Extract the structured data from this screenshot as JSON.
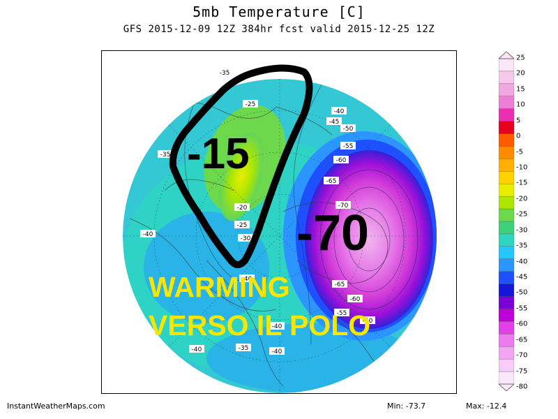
{
  "header": {
    "title": "5mb Temperature [C]",
    "subtitle": "GFS 2015-12-09 12Z 384hr fcst valid 2015-12-25 12Z"
  },
  "annotations": {
    "value_cold_region": "-15",
    "value_warm_region": "-70",
    "caption_line1": "WARMING",
    "caption_line2": "VERSO IL POLO",
    "caption_color": "#f7e600"
  },
  "map": {
    "contour_labels": [
      "-35",
      "-25",
      "-40",
      "-45",
      "-50",
      "-55",
      "-60",
      "-65",
      "-70",
      "-20",
      "-25",
      "-30",
      "-35",
      "-40",
      "-65",
      "-60",
      "-55",
      "-50",
      "-40",
      "-40",
      "-35",
      "-40",
      "-40"
    ]
  },
  "colorbar": {
    "labels": [
      "25",
      "20",
      "15",
      "10",
      "5",
      "0",
      "-5",
      "-10",
      "-15",
      "-20",
      "-25",
      "-30",
      "-35",
      "-40",
      "-45",
      "-50",
      "-55",
      "-60",
      "-65",
      "-70",
      "-75",
      "-80"
    ],
    "colors": [
      "#fbe6f5",
      "#f7c8ec",
      "#f2a6e2",
      "#ef7fd6",
      "#ea2fb5",
      "#e8001e",
      "#ff5a00",
      "#ff8c00",
      "#ffb000",
      "#ffd200",
      "#e8ee00",
      "#aee600",
      "#6ed84c",
      "#3fd07a",
      "#2ed6c2",
      "#25c7ff",
      "#2c95ff",
      "#1e50ff",
      "#1616d8",
      "#7a00d8",
      "#c000d8",
      "#e33fe8",
      "#ee7af0",
      "#f4a4f4",
      "#f9cbf9",
      "#fce6fc"
    ]
  },
  "footer": {
    "site": "InstantWeatherMaps.com",
    "min": "Min:  -73.7",
    "max": "Max:  -12.4"
  }
}
